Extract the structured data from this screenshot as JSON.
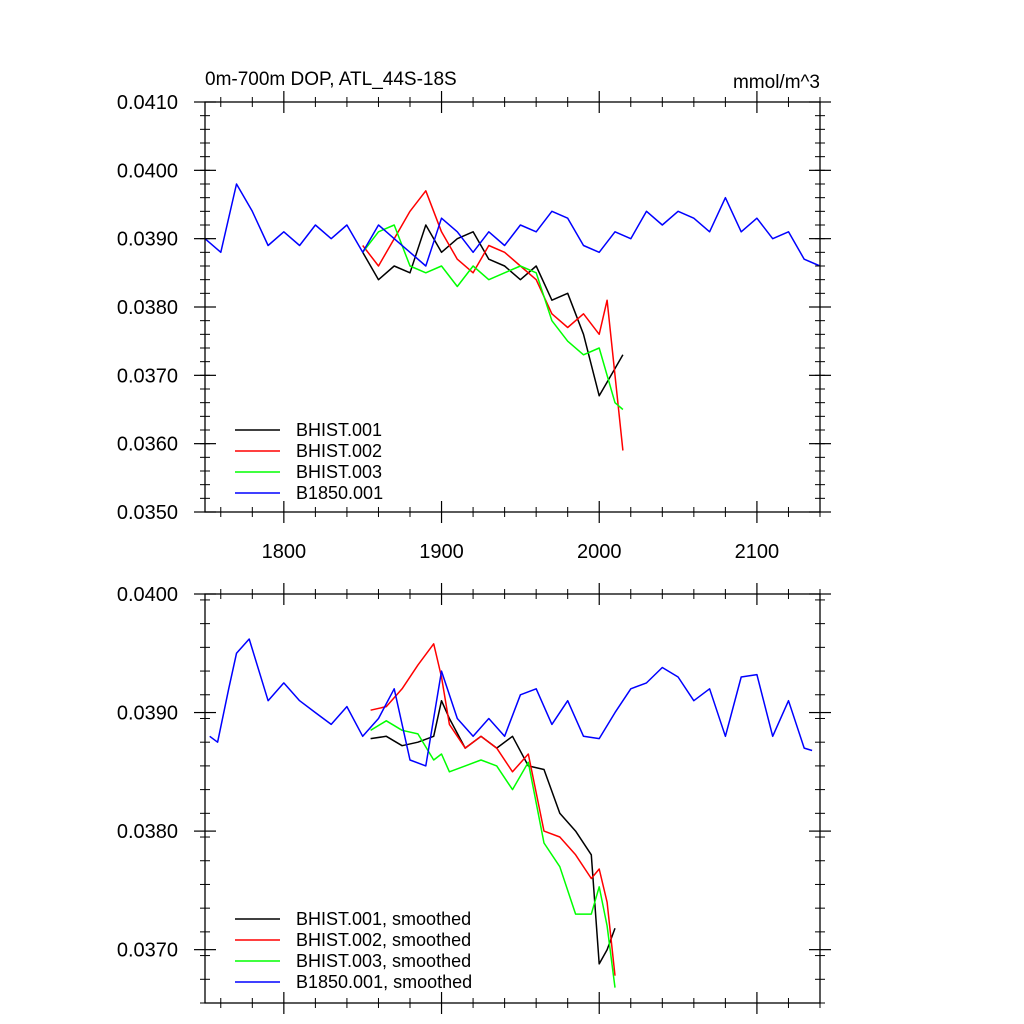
{
  "chart_data": [
    {
      "type": "line",
      "title": "0m-700m DOP, ATL_44S-18S",
      "units": "mmol/m^3",
      "xlabel": "",
      "ylabel": "",
      "xlim": [
        1750,
        2140
      ],
      "ylim": [
        0.035,
        0.041
      ],
      "x_ticks": [
        1800,
        1900,
        2000,
        2100
      ],
      "x_tick_labels": [
        "1800",
        "1900",
        "2000",
        "2100"
      ],
      "y_ticks": [
        0.035,
        0.036,
        0.037,
        0.038,
        0.039,
        0.04,
        0.041
      ],
      "y_tick_labels": [
        "0.0350",
        "0.0360",
        "0.0370",
        "0.0380",
        "0.0390",
        "0.0400",
        "0.0410"
      ],
      "legend_position": "bottom-left",
      "series": [
        {
          "name": "BHIST.001",
          "color": "#000000",
          "x": [
            1850,
            1860,
            1870,
            1880,
            1890,
            1900,
            1910,
            1920,
            1930,
            1940,
            1950,
            1960,
            1970,
            1980,
            1990,
            2000,
            2010,
            2015
          ],
          "values": [
            0.0388,
            0.0384,
            0.0386,
            0.0385,
            0.0392,
            0.0388,
            0.039,
            0.0391,
            0.0387,
            0.0386,
            0.0384,
            0.0386,
            0.0381,
            0.0382,
            0.0376,
            0.0367,
            0.0371,
            0.0373
          ]
        },
        {
          "name": "BHIST.002",
          "color": "#ff0000",
          "x": [
            1850,
            1860,
            1870,
            1880,
            1890,
            1900,
            1910,
            1920,
            1930,
            1940,
            1950,
            1960,
            1970,
            1980,
            1990,
            2000,
            2005,
            2010,
            2015
          ],
          "values": [
            0.0389,
            0.0386,
            0.039,
            0.0394,
            0.0397,
            0.0391,
            0.0387,
            0.0385,
            0.0389,
            0.0388,
            0.0386,
            0.0384,
            0.0379,
            0.0377,
            0.0379,
            0.0376,
            0.0381,
            0.037,
            0.0359
          ]
        },
        {
          "name": "BHIST.003",
          "color": "#00ff00",
          "x": [
            1850,
            1860,
            1870,
            1880,
            1890,
            1900,
            1910,
            1920,
            1930,
            1940,
            1950,
            1960,
            1970,
            1980,
            1990,
            2000,
            2010,
            2015
          ],
          "values": [
            0.0388,
            0.0391,
            0.0392,
            0.0386,
            0.0385,
            0.0386,
            0.0383,
            0.0386,
            0.0384,
            0.0385,
            0.0386,
            0.0385,
            0.0378,
            0.0375,
            0.0373,
            0.0374,
            0.0366,
            0.0365
          ]
        },
        {
          "name": "B1850.001",
          "color": "#0000ff",
          "x": [
            1750,
            1760,
            1770,
            1780,
            1790,
            1800,
            1810,
            1820,
            1830,
            1840,
            1850,
            1860,
            1870,
            1880,
            1890,
            1900,
            1910,
            1920,
            1930,
            1940,
            1950,
            1960,
            1970,
            1980,
            1990,
            2000,
            2010,
            2020,
            2030,
            2040,
            2050,
            2060,
            2070,
            2080,
            2090,
            2100,
            2110,
            2120,
            2130,
            2140
          ],
          "values": [
            0.039,
            0.0388,
            0.0398,
            0.0394,
            0.0389,
            0.0391,
            0.0389,
            0.0392,
            0.039,
            0.0392,
            0.0388,
            0.0392,
            0.039,
            0.0388,
            0.0386,
            0.0393,
            0.0391,
            0.0388,
            0.0391,
            0.0389,
            0.0392,
            0.0391,
            0.0394,
            0.0393,
            0.0389,
            0.0388,
            0.0391,
            0.039,
            0.0394,
            0.0392,
            0.0394,
            0.0393,
            0.0391,
            0.0396,
            0.0391,
            0.0393,
            0.039,
            0.0391,
            0.0387,
            0.0386
          ]
        }
      ]
    },
    {
      "type": "line",
      "title": "",
      "xlabel": "",
      "ylabel": "",
      "xlim": [
        1750,
        2140
      ],
      "ylim": [
        0.03655,
        0.04
      ],
      "x_ticks": [
        1800,
        1900,
        2000,
        2100
      ],
      "x_tick_labels": [
        "",
        "",
        "",
        ""
      ],
      "y_ticks": [
        0.037,
        0.038,
        0.039,
        0.04
      ],
      "y_tick_labels": [
        "0.0370",
        "0.0380",
        "0.0390",
        "0.0400"
      ],
      "legend_position": "bottom-left",
      "series": [
        {
          "name": "BHIST.001, smoothed",
          "color": "#000000",
          "x": [
            1855,
            1865,
            1875,
            1885,
            1895,
            1900,
            1905,
            1915,
            1925,
            1935,
            1945,
            1955,
            1965,
            1975,
            1985,
            1995,
            2000,
            2005,
            2010
          ],
          "values": [
            0.03878,
            0.0388,
            0.03872,
            0.03875,
            0.0388,
            0.0391,
            0.03895,
            0.0387,
            0.0388,
            0.0387,
            0.0388,
            0.03855,
            0.03852,
            0.03815,
            0.038,
            0.0378,
            0.03688,
            0.037,
            0.03718
          ]
        },
        {
          "name": "BHIST.002, smoothed",
          "color": "#ff0000",
          "x": [
            1855,
            1865,
            1875,
            1885,
            1895,
            1900,
            1905,
            1915,
            1925,
            1935,
            1945,
            1955,
            1965,
            1975,
            1985,
            1995,
            2000,
            2005,
            2010
          ],
          "values": [
            0.03902,
            0.03905,
            0.0392,
            0.0394,
            0.03958,
            0.0393,
            0.0389,
            0.0387,
            0.0388,
            0.0387,
            0.0385,
            0.03865,
            0.038,
            0.03795,
            0.0378,
            0.0376,
            0.03768,
            0.0374,
            0.03678
          ]
        },
        {
          "name": "BHIST.003, smoothed",
          "color": "#00ff00",
          "x": [
            1855,
            1865,
            1875,
            1885,
            1895,
            1900,
            1905,
            1915,
            1925,
            1935,
            1945,
            1955,
            1965,
            1975,
            1985,
            1995,
            2000,
            2005,
            2010
          ],
          "values": [
            0.03885,
            0.03893,
            0.03885,
            0.03882,
            0.0386,
            0.03865,
            0.0385,
            0.03855,
            0.0386,
            0.03855,
            0.03835,
            0.03858,
            0.0379,
            0.0377,
            0.0373,
            0.0373,
            0.03753,
            0.0372,
            0.03668
          ]
        },
        {
          "name": "B1850.001, smoothed",
          "color": "#0000ff",
          "x": [
            1753,
            1758,
            1765,
            1770,
            1778,
            1790,
            1800,
            1810,
            1820,
            1830,
            1840,
            1850,
            1860,
            1870,
            1880,
            1890,
            1900,
            1910,
            1920,
            1930,
            1940,
            1950,
            1960,
            1970,
            1980,
            1990,
            2000,
            2010,
            2020,
            2030,
            2040,
            2050,
            2060,
            2070,
            2080,
            2090,
            2100,
            2110,
            2120,
            2130,
            2135
          ],
          "values": [
            0.0388,
            0.03875,
            0.0392,
            0.0395,
            0.03962,
            0.0391,
            0.03925,
            0.0391,
            0.039,
            0.0389,
            0.03905,
            0.0388,
            0.03895,
            0.0392,
            0.0386,
            0.03855,
            0.03935,
            0.03895,
            0.0388,
            0.03895,
            0.0388,
            0.03915,
            0.0392,
            0.0389,
            0.0391,
            0.0388,
            0.03878,
            0.039,
            0.0392,
            0.03925,
            0.03938,
            0.0393,
            0.0391,
            0.0392,
            0.0388,
            0.0393,
            0.03932,
            0.0388,
            0.0391,
            0.0387,
            0.03868
          ]
        }
      ]
    }
  ]
}
